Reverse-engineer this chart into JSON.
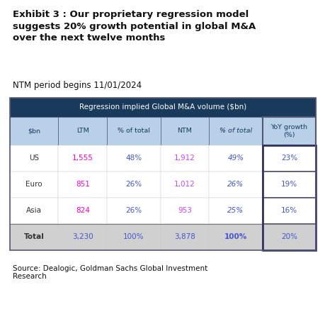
{
  "title_line1": "Exhibit 3 : Our proprietary regression model",
  "title_line2": "suggests 20% growth potential in global M&A",
  "title_line3": "over the next twelve months",
  "subtitle": "NTM period begins 11/01/2024",
  "table_header": "Regression implied Global M&A volume ($bn)",
  "col_headers": [
    "$bn",
    "LTM",
    "% of total",
    "NTM",
    "% of total",
    "YoY growth\n(%)"
  ],
  "rows": [
    [
      "US",
      "1,555",
      "48%",
      "1,912",
      "49%",
      "23%"
    ],
    [
      "Euro",
      "851",
      "26%",
      "1,012",
      "26%",
      "19%"
    ],
    [
      "Asia",
      "824",
      "26%",
      "953",
      "25%",
      "16%"
    ],
    [
      "Total",
      "3,230",
      "100%",
      "3,878",
      "100%",
      "20%"
    ]
  ],
  "source": "Source: Dealogic, Goldman Sachs Global Investment\nResearch",
  "header_bg": "#1a3a5c",
  "header_text": "#ffffff",
  "col_header_bg": "#b8d0e8",
  "col_header_text": "#1a3a5c",
  "row_bg_normal": "#ffffff",
  "row_bg_total": "#d0d0d0",
  "region_text_color": "#333333",
  "ltm_color": "#ff00cc",
  "ntm_color": "#cc44ff",
  "pct_color": "#4455cc",
  "yoy_color": "#4455cc",
  "total_ltm_color": "#4455cc",
  "total_ntm_color": "#4455cc",
  "total_pct_color": "#4455cc",
  "border_color": "#555577",
  "bg_color": "#ffffff"
}
